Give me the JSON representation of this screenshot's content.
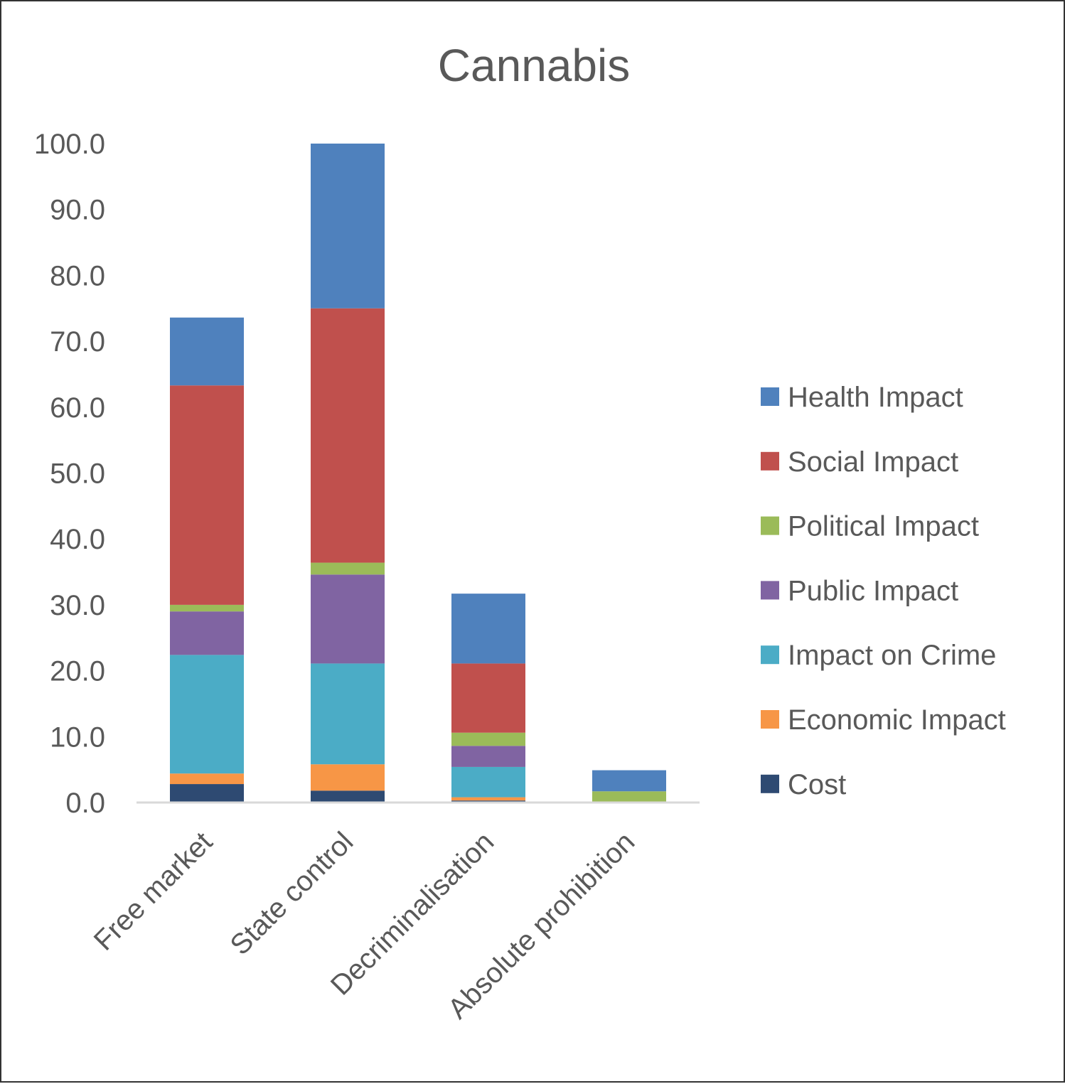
{
  "chart_data": {
    "type": "bar",
    "stacked": true,
    "title": "Cannabis",
    "xlabel": "",
    "ylabel": "",
    "ylim": [
      0,
      100
    ],
    "yticks": [
      "0.0",
      "10.0",
      "20.0",
      "30.0",
      "40.0",
      "50.0",
      "60.0",
      "70.0",
      "80.0",
      "90.0",
      "100.0"
    ],
    "categories": [
      "Free market",
      "State control",
      "Decriminalisation",
      "Absolute prohibition"
    ],
    "grid": false,
    "legend_position": "right",
    "series": [
      {
        "name": "Cost",
        "color": "#2E4A72",
        "values": [
          2.8,
          1.8,
          0.3,
          0.0
        ]
      },
      {
        "name": "Economic Impact",
        "color": "#F79646",
        "values": [
          1.6,
          4.0,
          0.5,
          0.0
        ]
      },
      {
        "name": "Impact on Crime",
        "color": "#4BACC6",
        "values": [
          18.0,
          15.3,
          4.6,
          0.0
        ]
      },
      {
        "name": "Public Impact",
        "color": "#8064A2",
        "values": [
          6.6,
          13.5,
          3.2,
          0.0
        ]
      },
      {
        "name": "Political Impact",
        "color": "#9BBB59",
        "values": [
          1.0,
          1.8,
          2.0,
          1.7
        ]
      },
      {
        "name": "Social Impact",
        "color": "#C0504D",
        "values": [
          33.3,
          38.6,
          10.5,
          0.0
        ]
      },
      {
        "name": "Health Impact",
        "color": "#4F81BD",
        "values": [
          10.3,
          25.0,
          10.6,
          3.2
        ]
      }
    ]
  }
}
